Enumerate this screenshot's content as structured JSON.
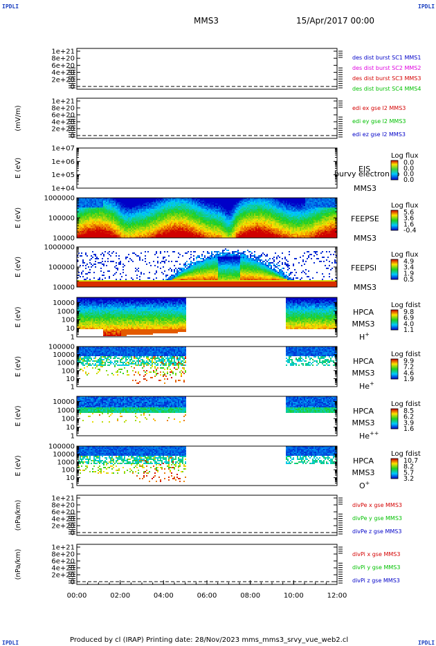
{
  "header": {
    "corner_tl": "IPDLI",
    "corner_tr": "IPDLI",
    "corner_bl": "IPDLI",
    "corner_br": "IPDLI",
    "title": "MMS3",
    "date": "15/Apr/2017 00:00"
  },
  "footer": {
    "text": "Produced by cl (IRAP)   Printing date: 28/Nov/2023   mms_mms3_srvy_vue_web2.cl"
  },
  "colors": {
    "red": "#d40000",
    "magenta": "#e000e0",
    "green": "#00c000",
    "blue": "#0000c8"
  },
  "chart_data": [
    {
      "type": "line",
      "panel": "des-dist",
      "ylabel": "",
      "yticks": [
        "1e+21",
        "8e+20",
        "6e+20",
        "4e+20",
        "2e+20",
        "0"
      ],
      "ylim": [
        0,
        1e+21
      ],
      "dashed_zero": true,
      "series": [
        {
          "name": "des dist burst SC1 MMS1",
          "color": "#0000c8"
        },
        {
          "name": "des dist burst SC2 MMS2",
          "color": "#e000e0"
        },
        {
          "name": "des dist burst SC3 MMS3",
          "color": "#d40000"
        },
        {
          "name": "des dist burst SC4 MMS4",
          "color": "#00c000"
        }
      ]
    },
    {
      "type": "line",
      "panel": "edi-e",
      "ylabel": "(mV/m)",
      "yticks": [
        "1e+21",
        "8e+20",
        "6e+20",
        "4e+20",
        "2e+20",
        "0"
      ],
      "ylim": [
        0,
        1e+21
      ],
      "dashed_zero": true,
      "series": [
        {
          "name": "edi ex gse l2 MMS3",
          "color": "#d40000"
        },
        {
          "name": "edi ey gse l2 MMS3",
          "color": "#00c000"
        },
        {
          "name": "edi ez gse l2 MMS3",
          "color": "#0000c8"
        }
      ]
    },
    {
      "type": "heatmap",
      "panel": "eis",
      "ylabel": "E (eV)",
      "yticks": [
        "1e+07",
        "1e+06",
        "1e+05",
        "1e+04"
      ],
      "yscale": "log",
      "ylim": [
        10000,
        10000000
      ],
      "labels": [
        "EIS",
        "MMS3"
      ],
      "overlay_text": "burvy electron to",
      "colorbar": {
        "title": "Log flux",
        "ticks": [
          "0.0",
          "0.0",
          "0.0",
          "0.0"
        ]
      },
      "content": "empty"
    },
    {
      "type": "heatmap",
      "panel": "feeps-e",
      "ylabel": "E (eV)",
      "yticks": [
        "1000000",
        "100000",
        "10000"
      ],
      "yscale": "log",
      "ylim": [
        10000,
        1000000
      ],
      "labels": [
        "FEEPSE",
        "MMS3"
      ],
      "colorbar": {
        "title": "Log flux",
        "ticks": [
          "5.6",
          "3.6",
          "1.6",
          "-0.4"
        ]
      },
      "content": "full"
    },
    {
      "type": "heatmap",
      "panel": "feeps-i",
      "ylabel": "E (eV)",
      "yticks": [
        "1000000",
        "100000",
        "10000"
      ],
      "yscale": "log",
      "ylim": [
        10000,
        1000000
      ],
      "labels": [
        "FEEPSI",
        "MMS3"
      ],
      "colorbar": {
        "title": "Log flux",
        "ticks": [
          "4.9",
          "3.4",
          "1.9",
          "0.5"
        ]
      },
      "content": "arch"
    },
    {
      "type": "heatmap",
      "panel": "hpca-h",
      "ylabel": "E (eV)",
      "yticks": [
        "10000",
        "1000",
        "100",
        "10",
        "1"
      ],
      "yscale": "log",
      "ylim": [
        1,
        40000
      ],
      "labels": [
        "HPCA",
        "MMS3"
      ],
      "species": "H+",
      "colorbar": {
        "title": "Log fdist",
        "ticks": [
          "9.8",
          "6.9",
          "4.0",
          "1.1"
        ]
      },
      "data_intervals": [
        [
          "00:00",
          "05:00"
        ],
        [
          "09:35",
          "12:00"
        ]
      ],
      "content": "dense"
    },
    {
      "type": "heatmap",
      "panel": "hpca-he",
      "ylabel": "E (eV)",
      "yticks": [
        "100000",
        "10000",
        "1000",
        "100",
        "10",
        "1"
      ],
      "yscale": "log",
      "ylim": [
        1,
        100000
      ],
      "labels": [
        "HPCA",
        "MMS3"
      ],
      "species": "He+",
      "colorbar": {
        "title": "Log fdist",
        "ticks": [
          "9.9",
          "7.2",
          "4.6",
          "1.9"
        ]
      },
      "data_intervals": [
        [
          "00:00",
          "05:00"
        ],
        [
          "09:35",
          "12:00"
        ]
      ],
      "content": "sparse"
    },
    {
      "type": "heatmap",
      "panel": "hpca-hepp",
      "ylabel": "E (eV)",
      "yticks": [
        "10000",
        "1000",
        "100",
        "10",
        "1"
      ],
      "yscale": "log",
      "ylim": [
        1,
        40000
      ],
      "labels": [
        "HPCA",
        "MMS3"
      ],
      "species": "He++",
      "colorbar": {
        "title": "Log fdist",
        "ticks": [
          "8.5",
          "6.2",
          "3.9",
          "1.6"
        ]
      },
      "data_intervals": [
        [
          "00:00",
          "05:00"
        ],
        [
          "09:35",
          "12:00"
        ]
      ],
      "content": "band"
    },
    {
      "type": "heatmap",
      "panel": "hpca-o",
      "ylabel": "E (eV)",
      "yticks": [
        "100000",
        "10000",
        "1000",
        "100",
        "10",
        "1"
      ],
      "yscale": "log",
      "ylim": [
        1,
        100000
      ],
      "labels": [
        "HPCA",
        "MMS3"
      ],
      "species": "O+",
      "colorbar": {
        "title": "Log fdist",
        "ticks": [
          "10.7",
          "8.2",
          "5.7",
          "3.2"
        ]
      },
      "data_intervals": [
        [
          "00:00",
          "05:00"
        ],
        [
          "09:35",
          "12:00"
        ]
      ],
      "content": "sparse"
    },
    {
      "type": "line",
      "panel": "divpe",
      "ylabel": "(nPa/km)",
      "yticks": [
        "1e+21",
        "8e+20",
        "6e+20",
        "4e+20",
        "2e+20",
        "0"
      ],
      "ylim": [
        0,
        1e+21
      ],
      "dashed_zero": true,
      "series": [
        {
          "name": "divPe x gse MMS3",
          "color": "#d40000"
        },
        {
          "name": "divPe y gse MMS3",
          "color": "#00c000"
        },
        {
          "name": "divPe z gse MMS3",
          "color": "#0000c8"
        }
      ]
    },
    {
      "type": "line",
      "panel": "divpi",
      "ylabel": "(nPa/km)",
      "yticks": [
        "1e+21",
        "8e+20",
        "6e+20",
        "4e+20",
        "2e+20",
        "0"
      ],
      "ylim": [
        0,
        1e+21
      ],
      "dashed_zero": true,
      "series": [
        {
          "name": "divPi x gse MMS3",
          "color": "#d40000"
        },
        {
          "name": "divPi y gse MMS3",
          "color": "#00c000"
        },
        {
          "name": "divPi z gse MMS3",
          "color": "#0000c8"
        }
      ]
    }
  ],
  "x_axis": {
    "ticks": [
      "00:00",
      "02:00",
      "04:00",
      "06:00",
      "08:00",
      "10:00",
      "12:00"
    ],
    "range_hours": [
      0,
      12
    ]
  }
}
